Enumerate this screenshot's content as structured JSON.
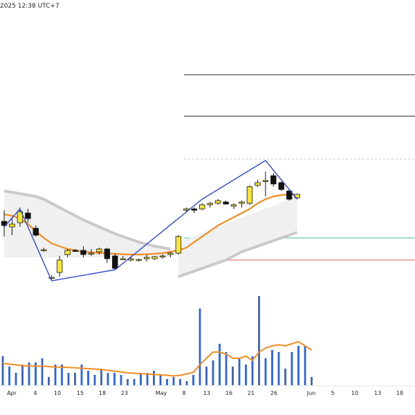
{
  "header": {
    "timestamp": "2025 12:38 UTC+7"
  },
  "colors": {
    "bull_candle": "#f7e43a",
    "bear_candle": "#111111",
    "ma_line": "#f28c1f",
    "zigzag": "#2c49d6",
    "volume_bar": "#2e62d9",
    "volume_ma": "#f28c1f",
    "ribbon": "#c9c9c9",
    "level_green": "#3fbf9a",
    "level_red": "#e05a5a",
    "level_black": "#222222"
  },
  "chart_data": {
    "type": "candlestick",
    "x_ticks": [
      "Apr",
      "4",
      "10",
      "15",
      "18",
      "23",
      "May",
      "8",
      "13",
      "16",
      "21",
      "26",
      "Jun",
      "5",
      "10",
      "13",
      "18"
    ],
    "y_ticks_visible": false,
    "candles": [
      {
        "o": 60.0,
        "h": 60.8,
        "l": 58.9,
        "c": 59.7
      },
      {
        "o": 59.6,
        "h": 60.3,
        "l": 59.0,
        "c": 59.8
      },
      {
        "o": 59.9,
        "h": 61.0,
        "l": 59.6,
        "c": 60.7
      },
      {
        "o": 60.6,
        "h": 60.9,
        "l": 59.9,
        "c": 60.2
      },
      {
        "o": 59.5,
        "h": 59.7,
        "l": 58.9,
        "c": 59.0
      },
      {
        "o": 57.9,
        "h": 58.1,
        "l": 57.8,
        "c": 57.95
      },
      {
        "o": 55.9,
        "h": 56.1,
        "l": 55.8,
        "c": 55.95
      },
      {
        "o": 56.3,
        "h": 57.5,
        "l": 56.0,
        "c": 57.2
      },
      {
        "o": 57.6,
        "h": 58.0,
        "l": 57.4,
        "c": 57.9
      },
      {
        "o": 57.9,
        "h": 58.0,
        "l": 57.8,
        "c": 57.85
      },
      {
        "o": 57.9,
        "h": 58.2,
        "l": 57.4,
        "c": 57.6
      },
      {
        "o": 57.7,
        "h": 58.0,
        "l": 57.5,
        "c": 57.7
      },
      {
        "o": 57.8,
        "h": 58.1,
        "l": 57.6,
        "c": 58.0
      },
      {
        "o": 58.0,
        "h": 58.1,
        "l": 57.0,
        "c": 57.3
      },
      {
        "o": 57.5,
        "h": 57.7,
        "l": 56.5,
        "c": 56.6
      },
      {
        "o": 57.3,
        "h": 57.5,
        "l": 57.2,
        "c": 57.3
      },
      {
        "o": 57.2,
        "h": 57.4,
        "l": 57.1,
        "c": 57.3
      },
      {
        "o": 57.2,
        "h": 57.3,
        "l": 57.1,
        "c": 57.25
      },
      {
        "o": 57.3,
        "h": 57.6,
        "l": 57.1,
        "c": 57.4
      },
      {
        "o": 57.3,
        "h": 57.5,
        "l": 57.2,
        "c": 57.45
      },
      {
        "o": 57.5,
        "h": 57.6,
        "l": 57.3,
        "c": 57.5
      },
      {
        "o": 57.6,
        "h": 57.8,
        "l": 57.4,
        "c": 57.7
      },
      {
        "o": 57.7,
        "h": 59.0,
        "l": 57.6,
        "c": 58.9
      },
      {
        "o": 60.8,
        "h": 61.0,
        "l": 60.7,
        "c": 60.9
      },
      {
        "o": 60.9,
        "h": 61.0,
        "l": 60.6,
        "c": 60.8
      },
      {
        "o": 60.9,
        "h": 61.3,
        "l": 60.8,
        "c": 61.2
      },
      {
        "o": 61.2,
        "h": 61.4,
        "l": 61.0,
        "c": 61.3
      },
      {
        "o": 61.3,
        "h": 61.6,
        "l": 61.2,
        "c": 61.5
      },
      {
        "o": 61.4,
        "h": 61.5,
        "l": 61.2,
        "c": 61.25
      },
      {
        "o": 61.1,
        "h": 61.3,
        "l": 60.9,
        "c": 61.2
      },
      {
        "o": 61.3,
        "h": 61.5,
        "l": 61.0,
        "c": 61.4
      },
      {
        "o": 61.3,
        "h": 62.6,
        "l": 61.2,
        "c": 62.5
      },
      {
        "o": 62.6,
        "h": 63.0,
        "l": 62.5,
        "c": 62.8
      },
      {
        "o": 62.9,
        "h": 63.6,
        "l": 61.8,
        "c": 62.95
      },
      {
        "o": 63.3,
        "h": 63.5,
        "l": 62.5,
        "c": 62.7
      },
      {
        "o": 62.8,
        "h": 62.9,
        "l": 62.2,
        "c": 62.3
      },
      {
        "o": 62.2,
        "h": 62.3,
        "l": 61.5,
        "c": 61.6
      },
      {
        "o": 61.7,
        "h": 62.0,
        "l": 61.6,
        "c": 61.95
      }
    ],
    "moving_average": [
      60.5,
      60.4,
      60.2,
      59.8,
      59.3,
      58.8,
      58.4,
      58.2,
      58.0,
      57.9,
      57.8,
      57.75,
      57.72,
      57.68,
      57.65,
      57.62,
      57.6,
      57.6,
      57.62,
      57.66,
      57.7,
      57.8,
      57.9,
      58.1,
      58.5,
      58.9,
      59.3,
      59.7,
      60.0,
      60.3,
      60.6,
      60.9,
      61.3,
      61.6,
      61.8,
      61.9,
      61.95,
      61.9
    ],
    "ribbon_upper": [
      62.2,
      62.1,
      62.0,
      61.9,
      61.8,
      61.6,
      61.3,
      61.0,
      60.7,
      60.4,
      60.1,
      59.85,
      59.6,
      59.35,
      59.1,
      58.9,
      58.7,
      58.5,
      58.35,
      58.2,
      58.1,
      58.0
    ],
    "ribbon_lower": [
      56.0,
      56.2,
      56.4,
      56.6,
      56.8,
      57.0,
      57.2,
      57.5,
      57.8,
      58.0,
      58.2,
      58.4,
      58.6,
      58.8,
      59.0,
      59.2
    ],
    "zigzag": [
      {
        "i": 0,
        "p": 59.6
      },
      {
        "i": 2,
        "p": 60.9
      },
      {
        "i": 6,
        "p": 55.7
      },
      {
        "i": 14,
        "p": 56.5
      },
      {
        "i": 25,
        "p": 61.6
      },
      {
        "i": 33,
        "p": 64.4
      },
      {
        "i": 37,
        "p": 61.6
      }
    ],
    "levels": [
      {
        "price": 70.6,
        "style": "solid",
        "color": "#222222"
      },
      {
        "price": 67.6,
        "style": "solid",
        "color": "#222222"
      },
      {
        "price": 64.5,
        "style": "dashed",
        "color": "#cccccc"
      },
      {
        "price": 58.8,
        "style": "solid",
        "color": "#3fbf9a"
      },
      {
        "price": 57.2,
        "style": "solid",
        "color": "#e05a5a"
      }
    ],
    "volume": [
      1.4,
      0.9,
      0.6,
      1.0,
      1.1,
      1.1,
      1.3,
      0.4,
      1.0,
      1.0,
      0.6,
      0.6,
      1.0,
      0.7,
      0.5,
      0.8,
      0.6,
      0.6,
      0.5,
      0.3,
      0.3,
      0.6,
      0.6,
      0.7,
      0.5,
      0.3,
      0.4,
      0.3,
      0.2,
      0.5,
      3.7,
      0.9,
      1.2,
      2.0,
      1.6,
      0.9,
      1.3,
      1.0,
      1.4,
      4.3,
      1.3,
      1.7,
      1.6,
      0.8,
      1.6,
      1.9,
      1.9,
      0.4
    ],
    "volume_ma": [
      1.05,
      1.02,
      0.98,
      0.95,
      0.93,
      0.92,
      0.92,
      0.9,
      0.88,
      0.87,
      0.86,
      0.84,
      0.82,
      0.8,
      0.78,
      0.76,
      0.72,
      0.68,
      0.64,
      0.6,
      0.58,
      0.56,
      0.55,
      0.52,
      0.5,
      0.48,
      0.45,
      0.48,
      0.55,
      0.62,
      1.0,
      1.3,
      1.6,
      1.6,
      1.5,
      1.3,
      1.3,
      1.4,
      1.2,
      1.6,
      1.8,
      1.9,
      1.95,
      1.9,
      2.0,
      2.1,
      1.9,
      1.7
    ]
  }
}
